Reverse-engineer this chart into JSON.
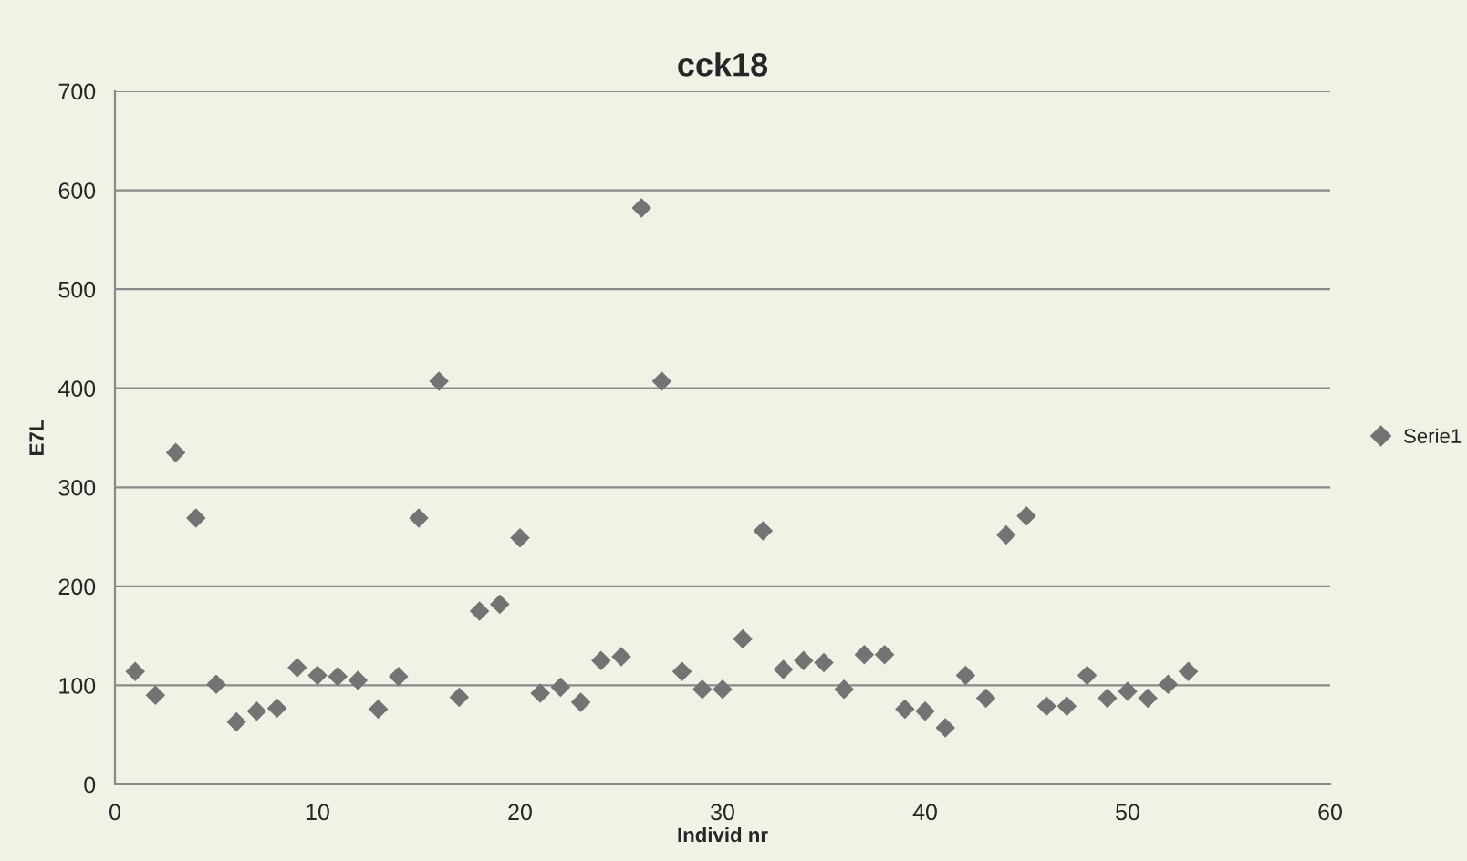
{
  "chart_data": {
    "type": "scatter",
    "title": "cck18",
    "xlabel": "Individ nr",
    "ylabel": "E7L",
    "x": [
      1,
      2,
      3,
      4,
      5,
      6,
      7,
      8,
      9,
      10,
      11,
      12,
      13,
      14,
      15,
      16,
      17,
      18,
      19,
      20,
      21,
      22,
      23,
      24,
      25,
      26,
      27,
      28,
      29,
      30,
      31,
      32,
      33,
      34,
      35,
      36,
      37,
      38,
      39,
      40,
      41,
      42,
      43,
      44,
      45,
      46,
      47,
      48,
      49,
      50,
      51,
      52,
      53
    ],
    "series": [
      {
        "name": "Serie1",
        "color": "#737373",
        "values": [
          114,
          90,
          335,
          269,
          101,
          63,
          74,
          77,
          118,
          110,
          109,
          105,
          76,
          109,
          269,
          407,
          88,
          175,
          182,
          249,
          92,
          98,
          83,
          125,
          129,
          582,
          407,
          114,
          96,
          96,
          147,
          256,
          116,
          125,
          123,
          96,
          131,
          131,
          76,
          74,
          57,
          110,
          87,
          252,
          271,
          79,
          79,
          110,
          87,
          94,
          87,
          101,
          114
        ]
      }
    ],
    "xlim": [
      0,
      60
    ],
    "xticks": [
      0,
      10,
      20,
      30,
      40,
      50,
      60
    ],
    "ylim": [
      0,
      700
    ],
    "yticks": [
      0,
      100,
      200,
      300,
      400,
      500,
      600,
      700
    ],
    "grid": "y",
    "legend": "right",
    "marker": "diamond"
  }
}
